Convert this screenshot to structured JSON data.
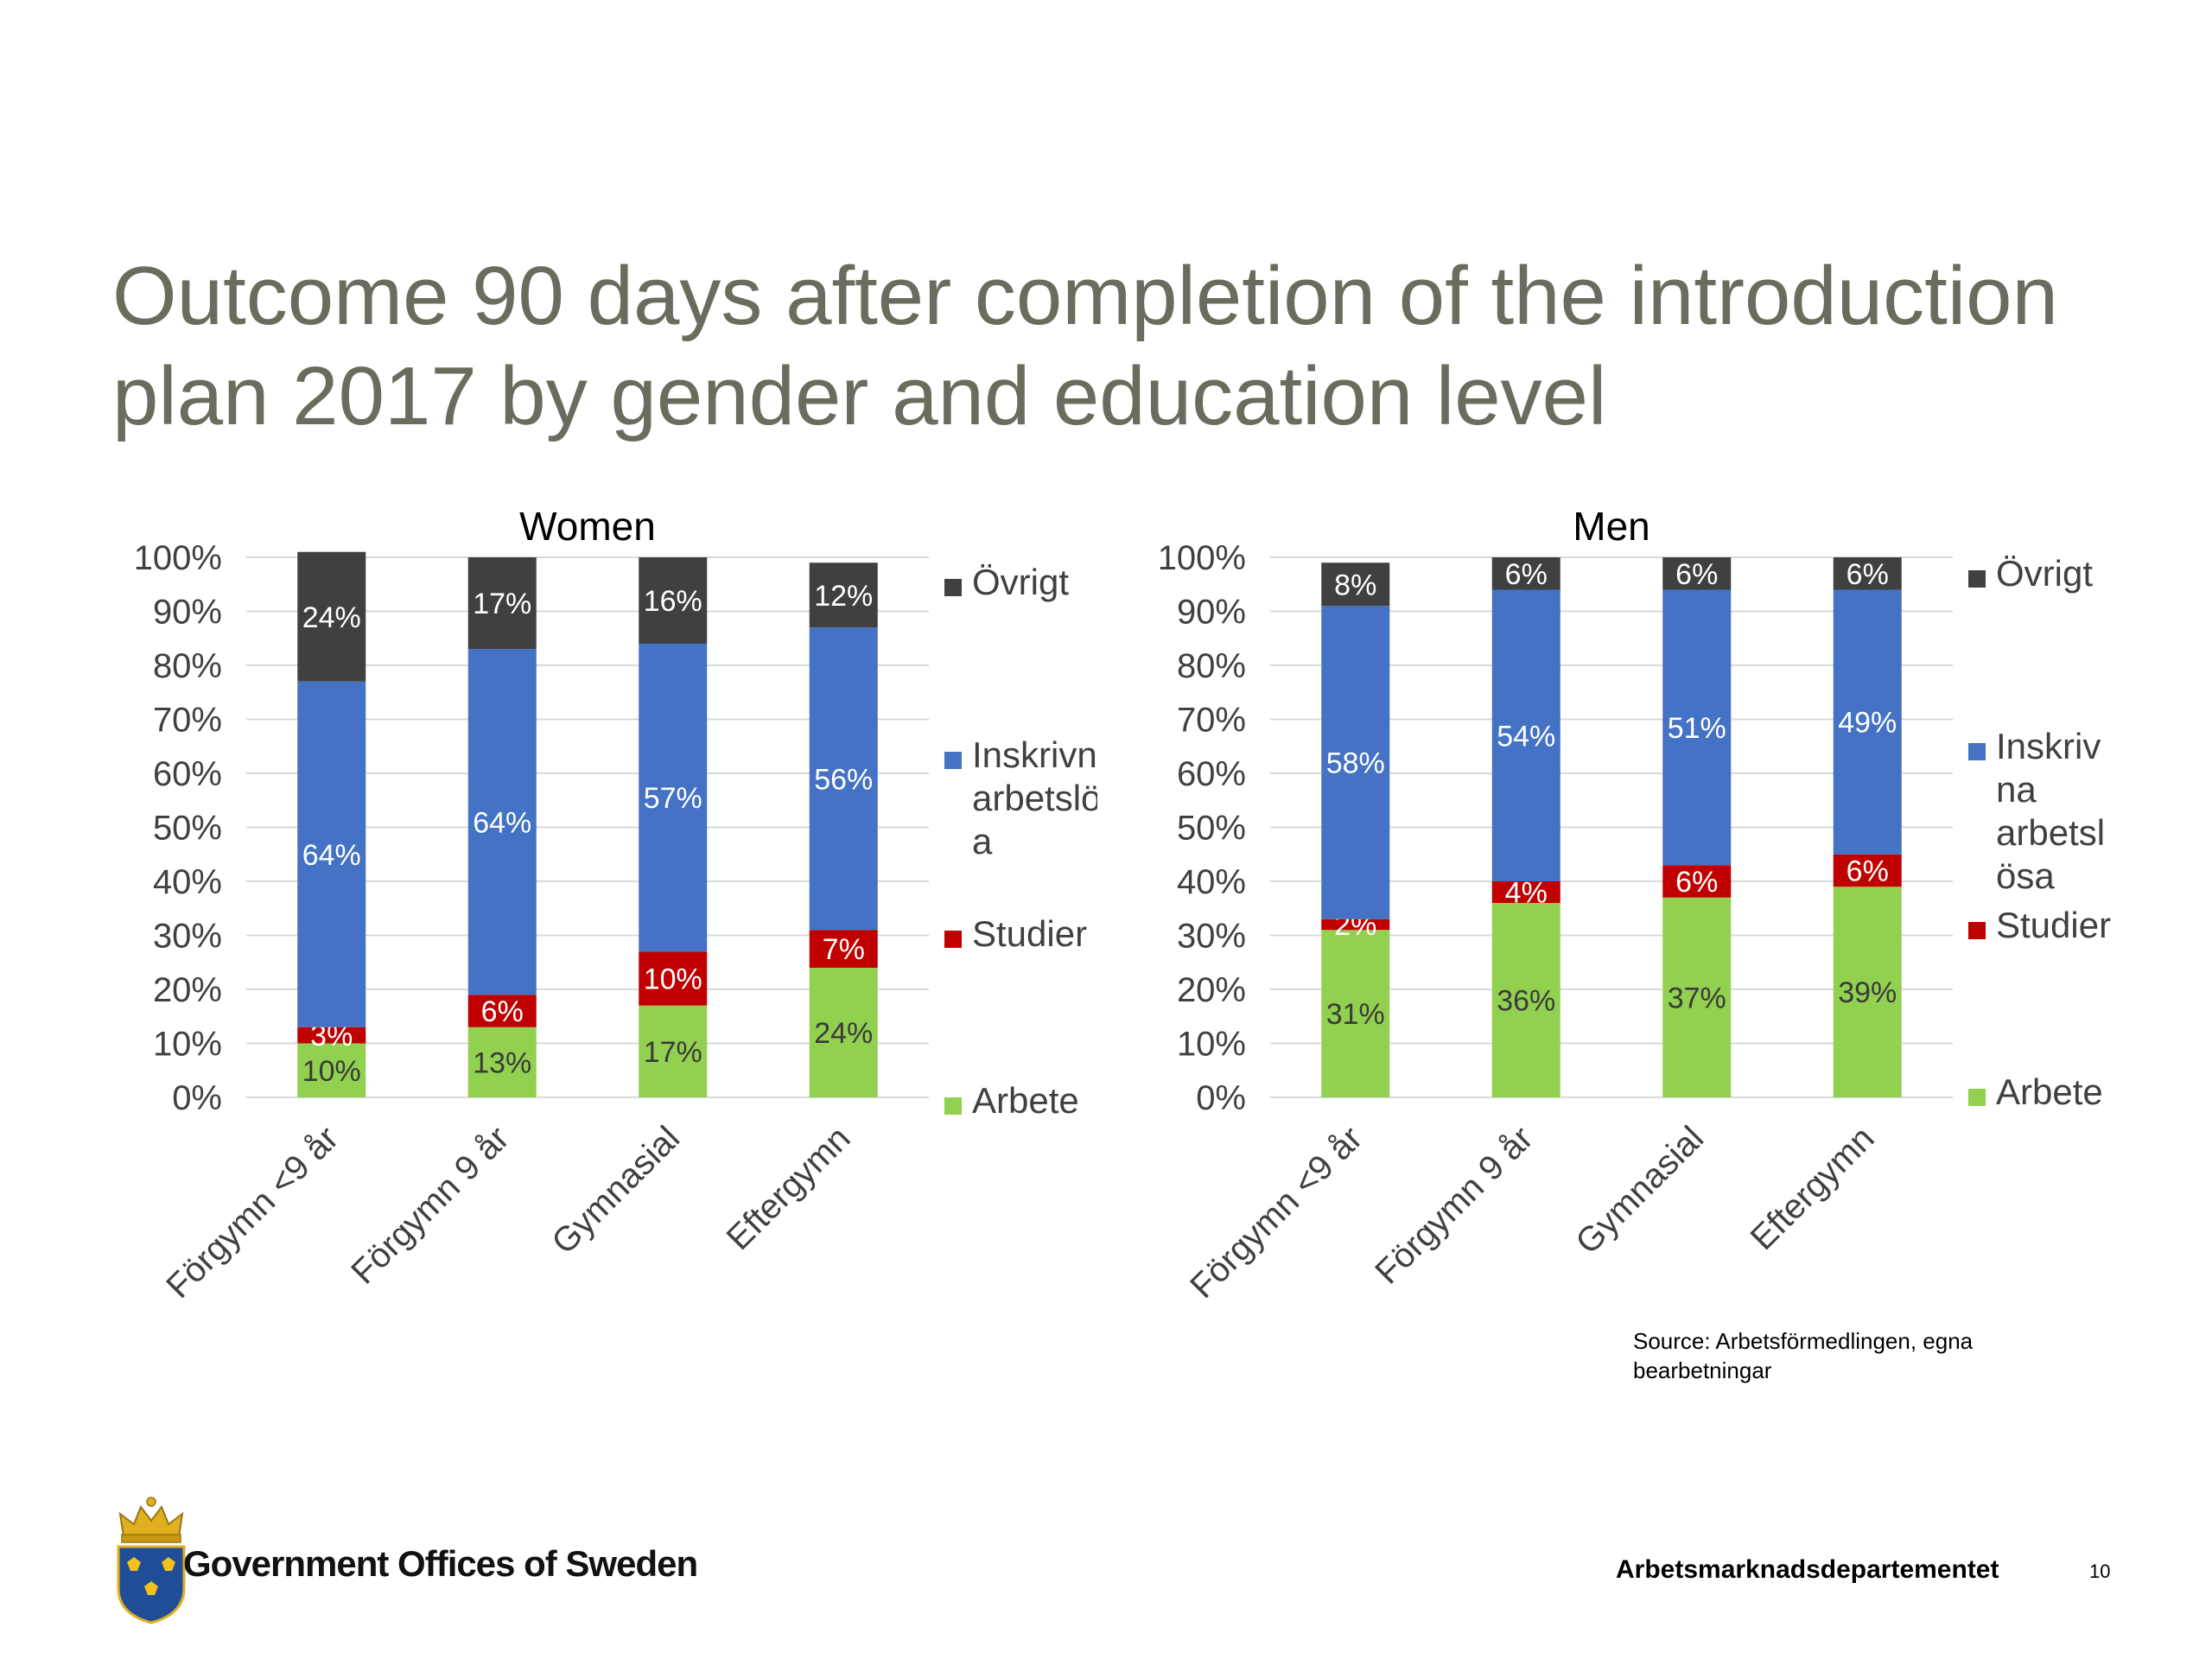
{
  "slide": {
    "title": "Outcome 90 days after completion of the introduction plan 2017 by gender and education level",
    "source": "Source: Arbetsförmedlingen, egna bearbetningar",
    "organization": "Government Offices of Sweden",
    "department": "Arbetsmarknadsdepartementet",
    "page_number": "10",
    "logo_icon": "swedish-crown-shield-icon"
  },
  "chart_data": [
    {
      "type": "bar",
      "stacked": true,
      "percent_stacked": true,
      "title": "Women",
      "categories": [
        "Förgymn <9 år",
        "Förgymn 9 år",
        "Gymnasial",
        "Eftergymn"
      ],
      "series": [
        {
          "name": "Arbete",
          "color": "#92d050",
          "values": [
            10,
            13,
            17,
            24
          ],
          "labels": [
            "10%",
            "13%",
            "17%",
            "24%"
          ]
        },
        {
          "name": "Studier",
          "color": "#c00000",
          "values": [
            3,
            6,
            10,
            7
          ],
          "labels": [
            "3%",
            "6%",
            "10%",
            "7%"
          ]
        },
        {
          "name": "Inskrivna arbetslösa",
          "color": "#4472c4",
          "values": [
            64,
            64,
            57,
            56
          ],
          "labels": [
            "64%",
            "64%",
            "57%",
            "56%"
          ]
        },
        {
          "name": "Övrigt",
          "color": "#404040",
          "values": [
            24,
            17,
            16,
            12
          ],
          "labels": [
            "24%",
            "17%",
            "16%",
            "12%"
          ]
        }
      ],
      "legend_labels": [
        "Övrigt",
        "Inskrivna arbetslös a",
        "Studier",
        "Arbete"
      ],
      "ylim": [
        0,
        100
      ],
      "y_ticks": [
        "0%",
        "10%",
        "20%",
        "30%",
        "40%",
        "50%",
        "60%",
        "70%",
        "80%",
        "90%",
        "100%"
      ],
      "grid": true,
      "legend_position": "right"
    },
    {
      "type": "bar",
      "stacked": true,
      "percent_stacked": true,
      "title": "Men",
      "categories": [
        "Förgymn <9 år",
        "Förgymn 9 år",
        "Gymnasial",
        "Eftergymn"
      ],
      "series": [
        {
          "name": "Arbete",
          "color": "#92d050",
          "values": [
            31,
            36,
            37,
            39
          ],
          "labels": [
            "31%",
            "36%",
            "37%",
            "39%"
          ]
        },
        {
          "name": "Studier",
          "color": "#c00000",
          "values": [
            2,
            4,
            6,
            6
          ],
          "labels": [
            "2%",
            "4%",
            "6%",
            "6%"
          ]
        },
        {
          "name": "Inskrivna arbetslösa",
          "color": "#4472c4",
          "values": [
            58,
            54,
            51,
            49
          ],
          "labels": [
            "58%",
            "54%",
            "51%",
            "49%"
          ]
        },
        {
          "name": "Övrigt",
          "color": "#404040",
          "values": [
            8,
            6,
            6,
            6
          ],
          "labels": [
            "8%",
            "6%",
            "6%",
            "6%"
          ]
        }
      ],
      "legend_labels": [
        "Övrigt",
        "Inskriv na arbetsl ösa",
        "Studier",
        "Arbete"
      ],
      "ylim": [
        0,
        100
      ],
      "y_ticks": [
        "0%",
        "10%",
        "20%",
        "30%",
        "40%",
        "50%",
        "60%",
        "70%",
        "80%",
        "90%",
        "100%"
      ],
      "grid": true,
      "legend_position": "right"
    }
  ]
}
